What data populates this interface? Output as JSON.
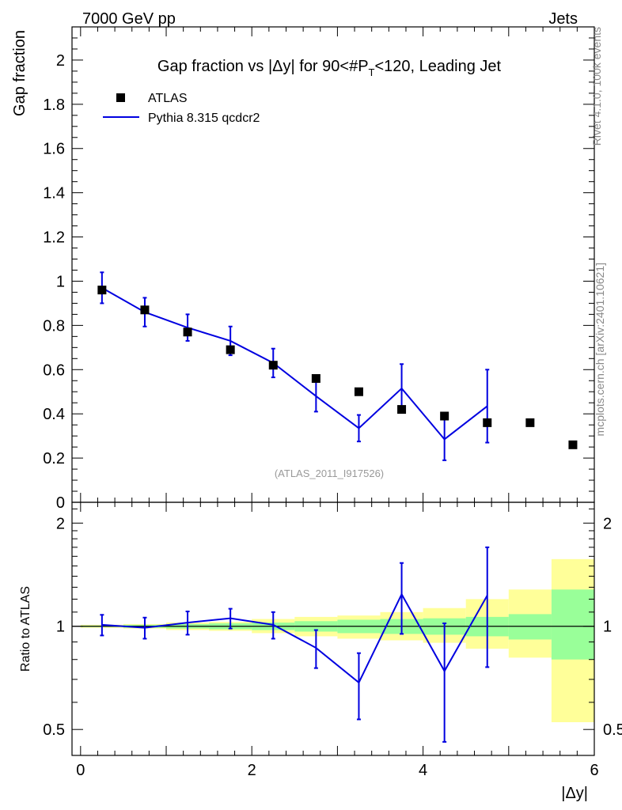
{
  "header": {
    "left": "7000 GeV pp",
    "right": "Jets"
  },
  "side_text": {
    "rivet": "Rivet 4.1.0,  100k events",
    "mcplots": "mcplots.cern.ch [arXiv:2401.10621]"
  },
  "colors": {
    "data_marker": "#000000",
    "mc_line": "#0000e0",
    "band_green": "#99ff99",
    "band_yellow": "#ffff99"
  },
  "chart_data": [
    {
      "type": "scatter",
      "panel": "main",
      "title": "Gap fraction vs |Δy| for 90<#P_T<120, Leading Jet",
      "title_prefix": "Gap fraction vs |Δy| for 90<#",
      "title_P": "P",
      "title_T": "T",
      "title_suffix": "<120, Leading Jet",
      "xlabel": "|Δy|",
      "ylabel": "Gap fraction",
      "xlim": [
        -0.1,
        6.0
      ],
      "ylim": [
        0,
        2.15
      ],
      "yticks": [
        0,
        0.2,
        0.4,
        0.6,
        0.8,
        1,
        1.2,
        1.4,
        1.6,
        1.8,
        2
      ],
      "ytick_labels": [
        "0",
        "0.2",
        "0.4",
        "0.6",
        "0.8",
        "1",
        "1.2",
        "1.4",
        "1.6",
        "1.8",
        "2"
      ],
      "watermark": "(ATLAS_2011_I917526)",
      "legend": [
        {
          "label": "ATLAS",
          "style": "marker"
        },
        {
          "label": "Pythia 8.315 qcdcr2",
          "style": "line"
        }
      ],
      "series": [
        {
          "name": "ATLAS",
          "x": [
            0.25,
            0.75,
            1.25,
            1.75,
            2.25,
            2.75,
            3.25,
            3.75,
            4.25,
            4.75,
            5.25,
            5.75
          ],
          "y": [
            0.96,
            0.87,
            0.77,
            0.69,
            0.62,
            0.56,
            0.5,
            0.42,
            0.39,
            0.36,
            0.36,
            0.26
          ]
        },
        {
          "name": "Pythia 8.315 qcdcr2",
          "x": [
            0.25,
            0.75,
            1.25,
            1.75,
            2.25,
            2.75,
            3.25,
            3.75,
            4.25,
            4.75
          ],
          "y": [
            0.97,
            0.86,
            0.79,
            0.73,
            0.63,
            0.48,
            0.335,
            0.515,
            0.285,
            0.435
          ],
          "yerr": [
            0.07,
            0.065,
            0.06,
            0.065,
            0.065,
            0.07,
            0.06,
            0.11,
            0.095,
            0.165
          ]
        }
      ]
    },
    {
      "type": "line",
      "panel": "ratio",
      "ylabel": "Ratio to ATLAS",
      "xlabel": "|Δy|",
      "xlim": [
        -0.1,
        6.0
      ],
      "ylim": [
        0.42,
        2.3
      ],
      "scale": "log",
      "yticks": [
        0.5,
        1,
        2
      ],
      "ytick_labels": [
        "0.5",
        "1",
        "2"
      ],
      "xticks": [
        0,
        2,
        4,
        6
      ],
      "xtick_labels": [
        "0",
        "2",
        "4",
        "6"
      ],
      "bands": {
        "edges": [
          0,
          0.5,
          1,
          1.5,
          2,
          2.5,
          3,
          3.5,
          4,
          4.5,
          5,
          5.5,
          6
        ],
        "green": [
          [
            0.995,
            1.005
          ],
          [
            0.99,
            1.01
          ],
          [
            0.985,
            1.015
          ],
          [
            0.98,
            1.02
          ],
          [
            0.975,
            1.025
          ],
          [
            0.965,
            1.035
          ],
          [
            0.955,
            1.045
          ],
          [
            0.95,
            1.05
          ],
          [
            0.945,
            1.055
          ],
          [
            0.935,
            1.065
          ],
          [
            0.915,
            1.085
          ],
          [
            0.8,
            1.28
          ]
        ],
        "yellow": [
          [
            0.99,
            1.01
          ],
          [
            0.985,
            1.015
          ],
          [
            0.975,
            1.025
          ],
          [
            0.97,
            1.03
          ],
          [
            0.955,
            1.05
          ],
          [
            0.935,
            1.065
          ],
          [
            0.92,
            1.075
          ],
          [
            0.91,
            1.1
          ],
          [
            0.895,
            1.13
          ],
          [
            0.86,
            1.2
          ],
          [
            0.81,
            1.28
          ],
          [
            0.525,
            1.57
          ]
        ]
      },
      "series": [
        {
          "name": "Pythia 8.315 qcdcr2",
          "x": [
            0.25,
            0.75,
            1.25,
            1.75,
            2.25,
            2.75,
            3.25,
            3.75,
            4.25,
            4.75
          ],
          "y": [
            1.01,
            0.99,
            1.025,
            1.055,
            1.01,
            0.865,
            0.685,
            1.24,
            0.74,
            1.23
          ],
          "yerr": [
            0.07,
            0.07,
            0.08,
            0.07,
            0.09,
            0.11,
            0.15,
            0.29,
            0.28,
            0.47
          ]
        }
      ]
    }
  ]
}
